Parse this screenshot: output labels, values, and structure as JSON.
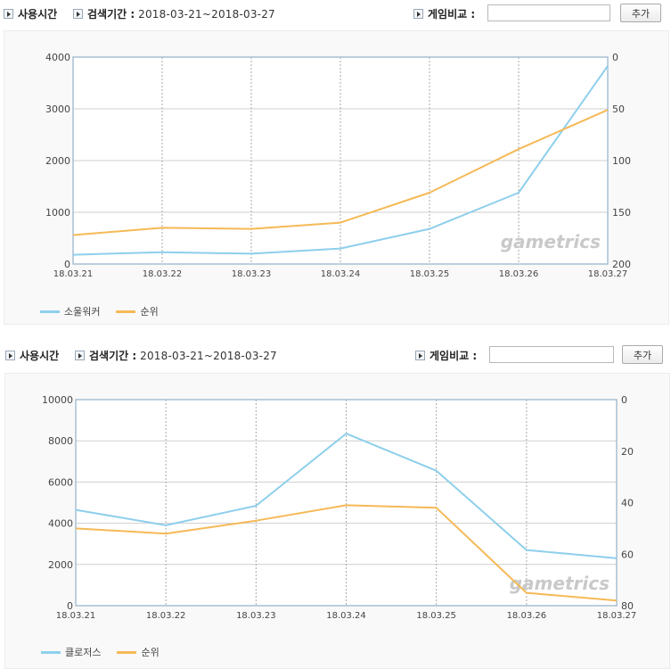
{
  "panels": [
    {
      "toolbar": {
        "usage_label": "사용시간",
        "period_label": "검색기간 :",
        "period_value": "2018-03-21~2018-03-27",
        "compare_label": "게임비교 :",
        "compare_input_value": "",
        "add_button": "추가"
      },
      "watermark": "gametrics",
      "legend": [
        {
          "label": "소울워커",
          "color": "#8ecfec"
        },
        {
          "label": "순위",
          "color": "#f5b957"
        }
      ]
    },
    {
      "toolbar": {
        "usage_label": "사용시간",
        "period_label": "검색기간 :",
        "period_value": "2018-03-21~2018-03-27",
        "compare_label": "게임비교 :",
        "compare_input_value": "",
        "add_button": "추가"
      },
      "watermark": "gametrics",
      "legend": [
        {
          "label": "클로저스",
          "color": "#8ecfec"
        },
        {
          "label": "순위",
          "color": "#f5b957"
        }
      ]
    }
  ],
  "chart_data": [
    {
      "type": "line",
      "categories": [
        "18.03.21",
        "18.03.22",
        "18.03.23",
        "18.03.24",
        "18.03.25",
        "18.03.26",
        "18.03.27"
      ],
      "y_left": {
        "range": [
          0,
          4000
        ],
        "ticks": [
          "0",
          "1000",
          "2000",
          "3000",
          "4000"
        ]
      },
      "y_right": {
        "range": [
          0,
          200
        ],
        "inverted": true,
        "ticks": [
          "0",
          "50",
          "100",
          "150",
          "200"
        ]
      },
      "series": [
        {
          "name": "소울워커",
          "axis": "left",
          "color": "#8ecfec",
          "values": [
            180,
            230,
            200,
            300,
            680,
            1380,
            3830
          ]
        },
        {
          "name": "순위",
          "axis": "right",
          "color": "#f5b957",
          "values": [
            172,
            165,
            166,
            160,
            131,
            89,
            51
          ]
        }
      ],
      "grid": true
    },
    {
      "type": "line",
      "categories": [
        "18.03.21",
        "18.03.22",
        "18.03.23",
        "18.03.24",
        "18.03.25",
        "18.03.26",
        "18.03.27"
      ],
      "y_left": {
        "range": [
          0,
          10000
        ],
        "ticks": [
          "0",
          "2000",
          "4000",
          "6000",
          "8000",
          "10000"
        ]
      },
      "y_right": {
        "range": [
          0,
          80
        ],
        "inverted": true,
        "ticks": [
          "0",
          "20",
          "40",
          "60",
          "80"
        ]
      },
      "series": [
        {
          "name": "클로저스",
          "axis": "left",
          "color": "#8ecfec",
          "values": [
            4650,
            3900,
            4850,
            8350,
            6550,
            2700,
            2300
          ]
        },
        {
          "name": "순위",
          "axis": "right",
          "color": "#f5b957",
          "values": [
            50,
            52,
            47,
            41,
            42,
            75,
            78
          ]
        }
      ],
      "grid": true
    }
  ]
}
